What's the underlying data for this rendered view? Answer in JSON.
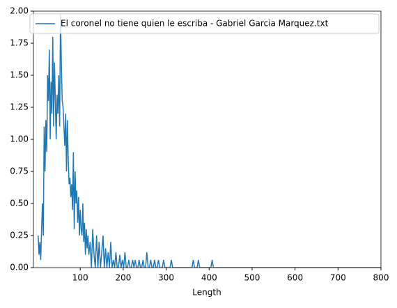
{
  "chart_data": {
    "type": "line",
    "x_label": "Length",
    "series": [
      {
        "name": "El coronel no tiene quien le escriba - Gabriel Garcia Marquez.txt",
        "color": "#1f77b4",
        "x": [
          2,
          4,
          6,
          8,
          10,
          12,
          14,
          16,
          18,
          20,
          22,
          24,
          26,
          28,
          30,
          32,
          34,
          36,
          38,
          40,
          42,
          44,
          46,
          48,
          50,
          52,
          54,
          56,
          58,
          60,
          62,
          64,
          66,
          68,
          70,
          72,
          74,
          76,
          78,
          80,
          82,
          84,
          86,
          88,
          90,
          92,
          94,
          96,
          98,
          100,
          102,
          104,
          106,
          108,
          110,
          112,
          114,
          116,
          118,
          120,
          123,
          126,
          129,
          132,
          135,
          138,
          141,
          144,
          147,
          150,
          153,
          156,
          159,
          162,
          165,
          168,
          171,
          174,
          177,
          180,
          183,
          186,
          189,
          192,
          195,
          198,
          201,
          204,
          207,
          210,
          213,
          216,
          219,
          222,
          225,
          228,
          231,
          234,
          237,
          240,
          243,
          246,
          249,
          252,
          255,
          258,
          261,
          264,
          267,
          270,
          273,
          276,
          279,
          282,
          285,
          288,
          291,
          294,
          297,
          300,
          309,
          312,
          315,
          360,
          363,
          366,
          372,
          375,
          378,
          404,
          407,
          410,
          800
        ],
        "values": [
          0.25,
          0.1,
          0.2,
          0.06,
          0.3,
          0.5,
          0.25,
          1.1,
          0.75,
          1.15,
          0.9,
          1.5,
          1.3,
          1.7,
          1.0,
          1.45,
          1.2,
          1.8,
          1.1,
          1.6,
          1.3,
          1.0,
          1.35,
          1.2,
          1.5,
          1.1,
          1.98,
          1.6,
          1.3,
          1.25,
          1.1,
          0.95,
          1.2,
          0.75,
          1.15,
          0.85,
          0.65,
          0.7,
          0.55,
          0.65,
          0.45,
          0.9,
          0.3,
          0.75,
          0.5,
          0.6,
          0.35,
          0.55,
          0.25,
          0.45,
          0.3,
          0.25,
          0.5,
          0.2,
          0.35,
          0.1,
          0.3,
          0.15,
          0.25,
          0.1,
          0.2,
          0,
          0.3,
          0.1,
          0,
          0.25,
          0,
          0.2,
          0,
          0.12,
          0.25,
          0,
          0.15,
          0,
          0.12,
          0,
          0.2,
          0,
          0.06,
          0,
          0.12,
          0,
          0,
          0.1,
          0,
          0.06,
          0,
          0.12,
          0,
          0,
          0.06,
          0,
          0,
          0.06,
          0,
          0.06,
          0,
          0,
          0.06,
          0,
          0,
          0.06,
          0,
          0,
          0.12,
          0,
          0,
          0.06,
          0,
          0,
          0.06,
          0,
          0,
          0.06,
          0,
          0,
          0,
          0.06,
          0,
          0,
          0,
          0.06,
          0,
          0,
          0.06,
          0,
          0,
          0.06,
          0,
          0,
          0.06,
          0,
          0
        ]
      }
    ],
    "xlim": [
      -9,
      800
    ],
    "xticks": [
      100,
      200,
      300,
      400,
      500,
      600,
      700,
      800
    ],
    "ylim": [
      0,
      2
    ],
    "yticks": [
      {
        "value": 0,
        "label": "0.00"
      },
      {
        "value": 0.25,
        "label": "0.25"
      },
      {
        "value": 0.5,
        "label": "0.50"
      },
      {
        "value": 0.75,
        "label": "0.75"
      },
      {
        "value": 1,
        "label": "1.00"
      },
      {
        "value": 1.25,
        "label": "1.25"
      },
      {
        "value": 1.5,
        "label": "1.50"
      },
      {
        "value": 1.75,
        "label": "1.75"
      },
      {
        "value": 2,
        "label": "2.00"
      }
    ],
    "grid": false,
    "legend": "upper right"
  }
}
